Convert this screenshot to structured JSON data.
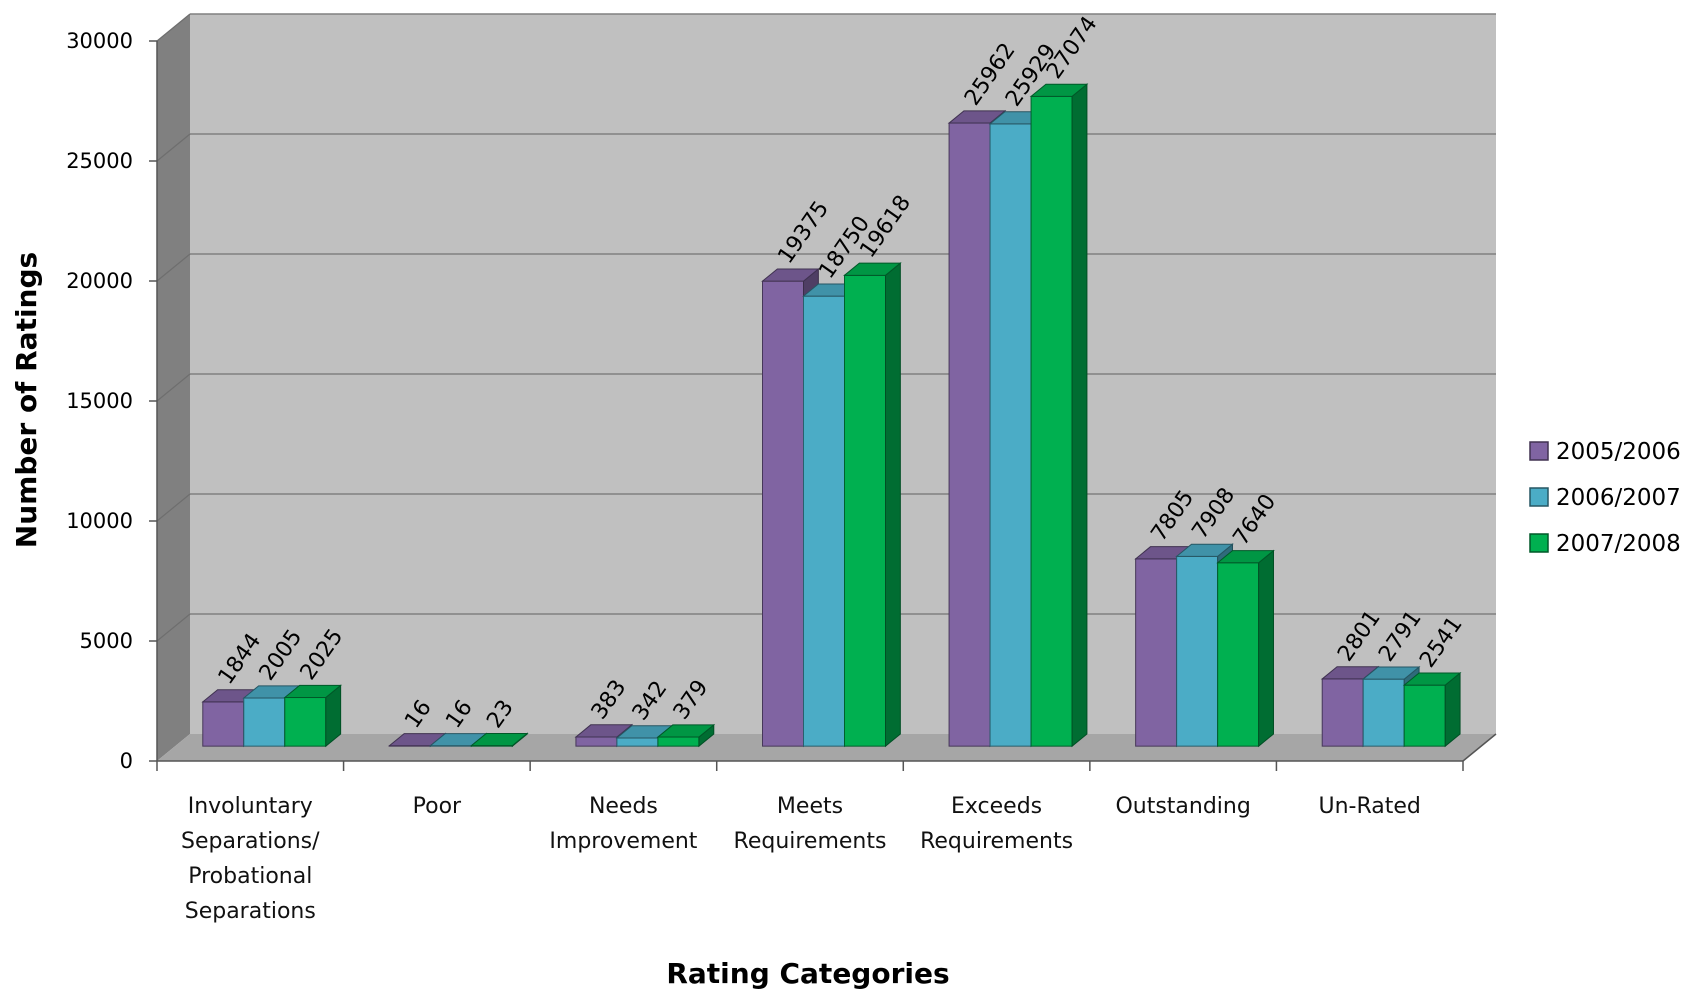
{
  "chart_data": {
    "type": "bar",
    "categories": [
      [
        "Involuntary",
        "Separations/",
        "Probational",
        "Separations"
      ],
      [
        "Poor"
      ],
      [
        "Needs",
        "Improvement"
      ],
      [
        "Meets",
        "Requirements"
      ],
      [
        "Exceeds",
        "Requirements"
      ],
      [
        "Outstanding"
      ],
      [
        "Un-Rated"
      ]
    ],
    "series": [
      {
        "name": "2005/2006",
        "color": "#8064A2",
        "values": [
          1844,
          16,
          383,
          19375,
          25962,
          7805,
          2801
        ]
      },
      {
        "name": "2006/2007",
        "color": "#4BACC6",
        "values": [
          2005,
          16,
          342,
          18750,
          25929,
          7908,
          2791
        ]
      },
      {
        "name": "2007/2008",
        "color": "#00B050",
        "values": [
          2025,
          23,
          379,
          19618,
          27074,
          7640,
          2541
        ]
      }
    ],
    "xlabel": "Rating Categories",
    "ylabel": "Number of Ratings",
    "ylim": [
      0,
      30000
    ],
    "yticks": [
      0,
      5000,
      10000,
      15000,
      20000,
      25000,
      30000
    ],
    "grid": true,
    "legend_position": "right",
    "style": "3d-clustered-column"
  }
}
